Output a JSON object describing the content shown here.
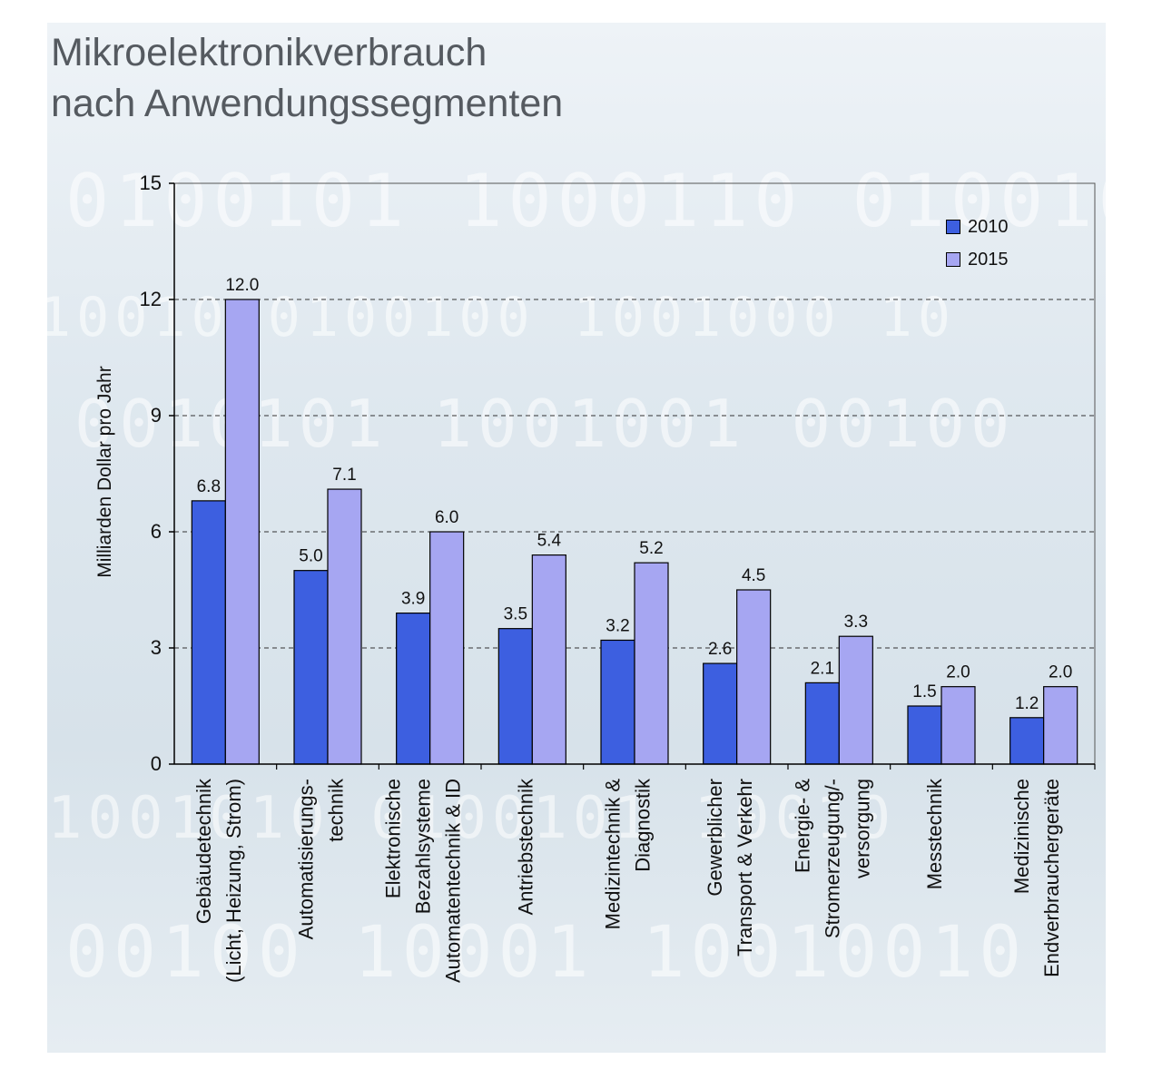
{
  "title_lines": [
    "Mikroelektronikverbrauch",
    "nach Anwendungssegmenten"
  ],
  "colors": {
    "series_2010": "#3d5fe0",
    "series_2015": "#a6a6f2"
  },
  "chart_data": {
    "type": "bar",
    "title": "Mikroelektronikverbrauch nach Anwendungssegmenten",
    "ylabel": "Milliarden Dollar pro Jahr",
    "xlabel": "",
    "ylim": [
      0,
      15
    ],
    "yticks": [
      0,
      3,
      6,
      9,
      12,
      15
    ],
    "grid": "dashed horizontal",
    "legend_position": "top-right",
    "categories": [
      [
        "Gebäudetechnik",
        "(Licht, Heizung, Strom)"
      ],
      [
        "Automatisierungs-",
        "technik"
      ],
      [
        "Elektronische",
        "Bezahlsysteme",
        "Automatentechnik & ID"
      ],
      [
        "Antriebstechnik"
      ],
      [
        "Medizintechnik &",
        "Diagnostik"
      ],
      [
        "Gewerblicher",
        "Transport & Verkehr"
      ],
      [
        "Energie- &",
        "Stromerzeugung/-",
        "versorgung"
      ],
      [
        "Messtechnik"
      ],
      [
        "Medizinische",
        "Endverbrauchergeräte"
      ]
    ],
    "series": [
      {
        "name": "2010",
        "values": [
          6.8,
          5.0,
          3.9,
          3.5,
          3.2,
          2.6,
          2.1,
          1.5,
          1.2
        ],
        "labels": [
          "6.8",
          "5.0",
          "3.9",
          "3.5",
          "3.2",
          "2.6",
          "2.1",
          "1.5",
          "1.2"
        ]
      },
      {
        "name": "2015",
        "values": [
          12.0,
          7.1,
          6.0,
          5.4,
          5.2,
          4.5,
          3.3,
          2.0,
          2.0
        ],
        "labels": [
          "12.0",
          "7.1",
          "6.0",
          "5.4",
          "5.2",
          "4.5",
          "3.3",
          "2.0",
          "2.0"
        ]
      }
    ]
  }
}
